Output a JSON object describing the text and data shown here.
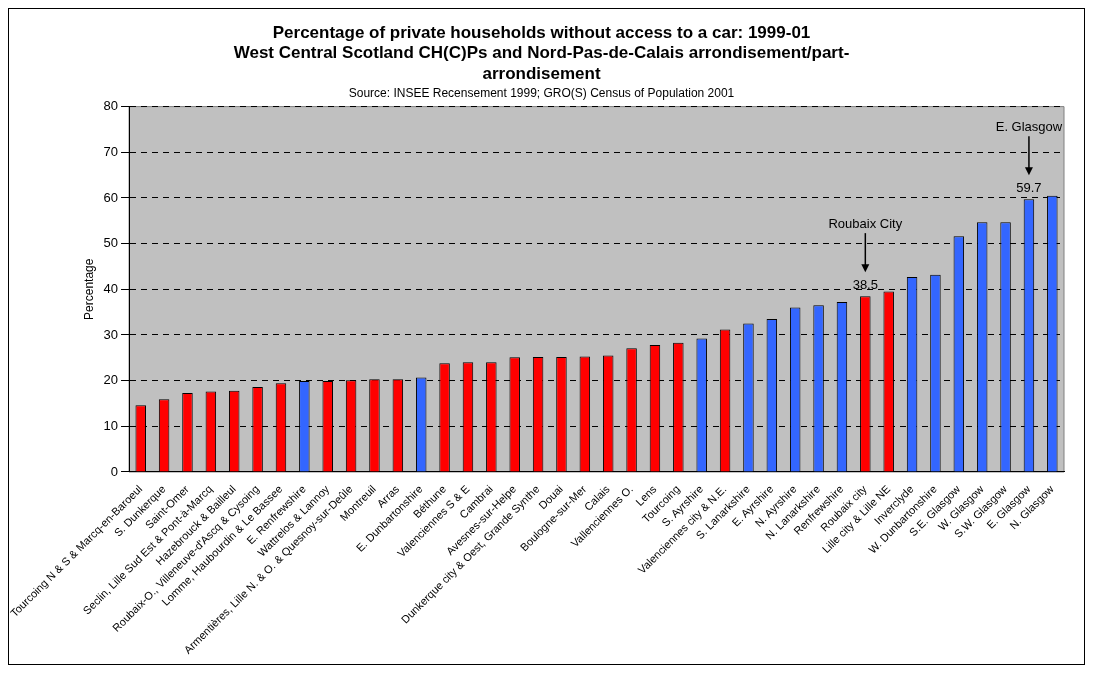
{
  "chart_data": {
    "type": "bar",
    "title": "Percentage of private households without access to a car: 1999-01\nWest Central Scotland CH(C)Ps and Nord-Pas-de-Calais arrondisement/part-\narrondisement",
    "subtitle": "Source: INSEE Recensement 1999; GRO(S) Census of Population 2001",
    "ylabel": "Percentage",
    "categories": [
      "Tourcoing N & S & Marcq-en-Baroeul",
      "S. Dunkerque",
      "Saint-Omer",
      "Seclin, Lille Sud Est & Pont-à-Marcq",
      "Hazebrouck & Bailleul",
      "Roubaix-O., Villeneuve-d'Ascq & Cysoing",
      "Lomme, Haubourdin & Le Bassee",
      "E. Renfrewshire",
      "Wattrelos & Lannoy",
      "Armentières, Lille N. & O. & Quesnoy-sur-Deûle",
      "Montreuil",
      "Arras",
      "E. Dunbartonshire",
      "Béthune",
      "Valenciennes S & E",
      "Cambrai",
      "Avesnes-sur-Helpe",
      "Dunkerque city & Oest, Grande Synthe",
      "Douai",
      "Boulogne-sur-Mer",
      "Calais",
      "Vallenciennes O.",
      "Lens",
      "Tourcoing",
      "S. Ayrshire",
      "Valenciennes city & N.E.",
      "S. Lanarkshire",
      "E. Ayrshire",
      "N. Ayrshire",
      "N. Lanarkshire",
      "Renfrewshire",
      "Roubaix city",
      "Lille city & Lille NE",
      "Inverclyde",
      "W. Dunbartonshire",
      "S.E. Glasgow",
      "W. Glasgow",
      "S.W. Glasgow",
      "E. Glasgow",
      "N. Glasgow"
    ],
    "values": [
      14.6,
      15.9,
      17.3,
      17.6,
      17.8,
      18.6,
      19.4,
      19.9,
      19.9,
      20.1,
      20.3,
      20.3,
      20.7,
      23.8,
      24.0,
      24.0,
      25.1,
      25.2,
      25.2,
      25.3,
      25.5,
      27.1,
      27.8,
      28.3,
      29.2,
      31.2,
      32.5,
      33.5,
      36.0,
      36.5,
      37.2,
      38.5,
      39.5,
      42.7,
      43.2,
      51.6,
      54.7,
      54.7,
      59.7,
      60.5
    ],
    "colors": [
      "#ff0000",
      "#ff0000",
      "#ff0000",
      "#ff0000",
      "#ff0000",
      "#ff0000",
      "#ff0000",
      "#3366ff",
      "#ff0000",
      "#ff0000",
      "#ff0000",
      "#ff0000",
      "#3366ff",
      "#ff0000",
      "#ff0000",
      "#ff0000",
      "#ff0000",
      "#ff0000",
      "#ff0000",
      "#ff0000",
      "#ff0000",
      "#ff0000",
      "#ff0000",
      "#ff0000",
      "#3366ff",
      "#ff0000",
      "#3366ff",
      "#3366ff",
      "#3366ff",
      "#3366ff",
      "#3366ff",
      "#ff0000",
      "#ff0000",
      "#3366ff",
      "#3366ff",
      "#3366ff",
      "#3366ff",
      "#3366ff",
      "#3366ff",
      "#3366ff"
    ],
    "value_labels": [
      null,
      null,
      null,
      null,
      null,
      null,
      null,
      null,
      null,
      null,
      null,
      null,
      null,
      null,
      null,
      null,
      null,
      null,
      null,
      null,
      null,
      null,
      null,
      null,
      null,
      null,
      null,
      null,
      null,
      null,
      null,
      "38.5",
      null,
      null,
      null,
      null,
      null,
      null,
      "59.7",
      null
    ],
    "annotations": [
      "Roubaix City",
      "E. Glasgow"
    ],
    "ylim": [
      0,
      80
    ],
    "yticks": [
      0,
      10,
      20,
      30,
      40,
      50,
      60,
      70,
      80
    ],
    "grid": "y",
    "legend": false
  }
}
